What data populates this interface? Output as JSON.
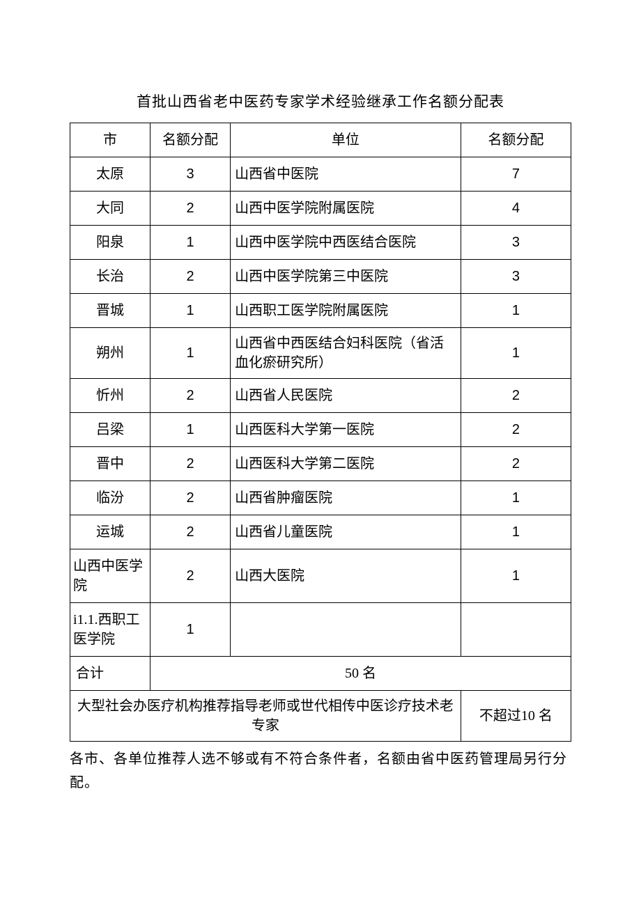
{
  "title": "首批山西省老中医药专家学术经验继承工作名额分配表",
  "headers": {
    "city": "市",
    "quota1": "名额分配",
    "unit": "单位",
    "quota2": "名额分配"
  },
  "rows": [
    {
      "city": "太原",
      "q1": "3",
      "unit": "山西省中医院",
      "q2": "7",
      "cityAlign": "center"
    },
    {
      "city": "大同",
      "q1": "2",
      "unit": "山西中医学院附属医院",
      "q2": "4",
      "cityAlign": "center"
    },
    {
      "city": "阳泉",
      "q1": "1",
      "unit": "山西中医学院中西医结合医院",
      "q2": "3",
      "cityAlign": "center"
    },
    {
      "city": "长治",
      "q1": "2",
      "unit": "山西中医学院第三中医院",
      "q2": "3",
      "cityAlign": "center"
    },
    {
      "city": "晋城",
      "q1": "1",
      "unit": "山西职工医学院附属医院",
      "q2": "1",
      "cityAlign": "center"
    },
    {
      "city": "朔州",
      "q1": "1",
      "unit": "山西省中西医结合妇科医院（省活血化瘀研究所）",
      "q2": "1",
      "cityAlign": "center"
    },
    {
      "city": "忻州",
      "q1": "2",
      "unit": "山西省人民医院",
      "q2": "2",
      "cityAlign": "center"
    },
    {
      "city": "吕梁",
      "q1": "1",
      "unit": "山西医科大学第一医院",
      "q2": "2",
      "cityAlign": "center"
    },
    {
      "city": "晋中",
      "q1": "2",
      "unit": "山西医科大学第二医院",
      "q2": "2",
      "cityAlign": "center"
    },
    {
      "city": "临汾",
      "q1": "2",
      "unit": "山西省肿瘤医院",
      "q2": "1",
      "cityAlign": "center"
    },
    {
      "city": "运城",
      "q1": "2",
      "unit": "山西省儿童医院",
      "q2": "1",
      "cityAlign": "center"
    },
    {
      "city": "山西中医学院",
      "q1": "2",
      "unit": "山西大医院",
      "q2": "1",
      "cityAlign": "left"
    },
    {
      "city": "i1.1.西职工医学院",
      "q1": "1",
      "unit": "",
      "q2": "",
      "cityAlign": "left"
    }
  ],
  "total": {
    "label": "合计",
    "value": "50 名"
  },
  "extra": {
    "label": "大型社会办医疗机构推荐指导老师或世代相传中医诊疗技术老专家",
    "value": "不超过10 名"
  },
  "footer": "各市、各单位推荐人选不够或有不符合条件者，名额由省中医药管理局另行分配。"
}
